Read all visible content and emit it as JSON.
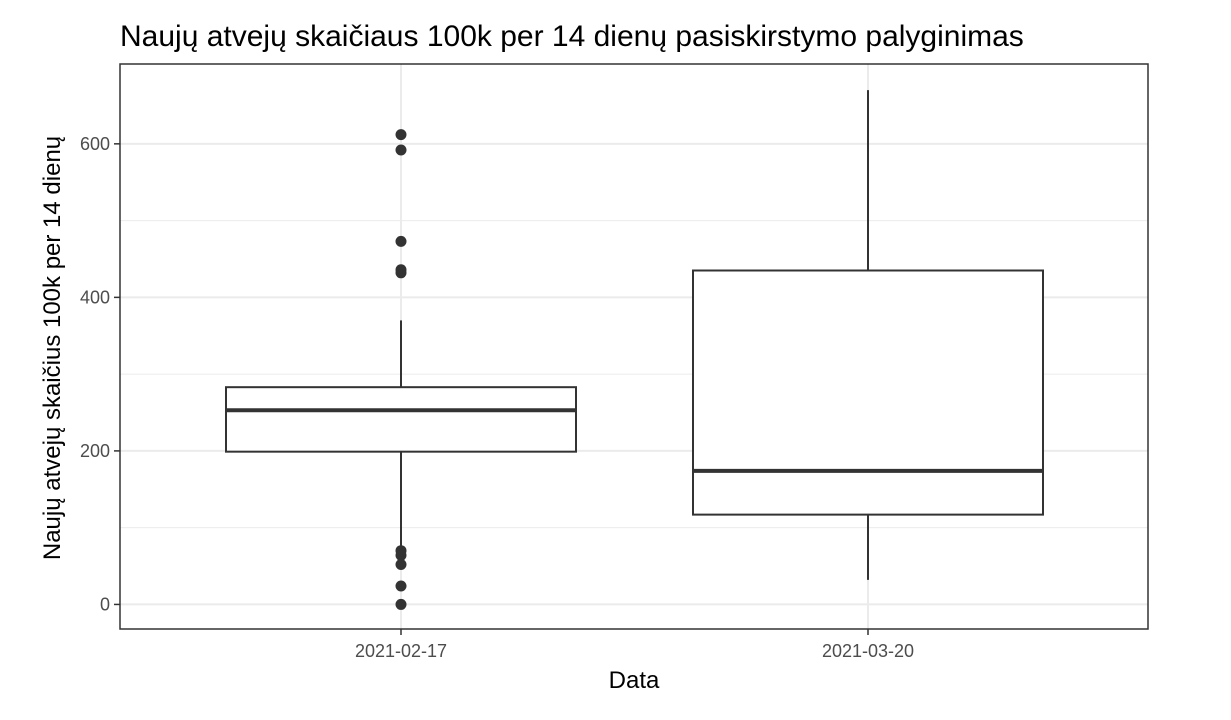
{
  "chart_data": {
    "type": "boxplot",
    "title": "Naujų atvejų skaičiaus 100k per 14 dienų pasiskirstymo palyginimas",
    "xlabel": "Data",
    "ylabel": "Naujų atvejų skaičius 100k per 14 dienų",
    "ylim": [
      -32,
      704
    ],
    "yticks": [
      0,
      200,
      400,
      600
    ],
    "ytick_labels": [
      "0",
      "200",
      "400",
      "600"
    ],
    "grid": true,
    "categories": [
      "2021-02-17",
      "2021-03-20"
    ],
    "boxes": [
      {
        "category": "2021-02-17",
        "whisker_low": 70,
        "q1": 199,
        "median": 253,
        "q3": 283,
        "whisker_high": 370,
        "outliers": [
          612,
          592,
          473,
          436,
          432,
          70,
          64,
          52,
          24,
          0
        ]
      },
      {
        "category": "2021-03-20",
        "whisker_low": 32,
        "q1": 117,
        "median": 174,
        "q3": 435,
        "whisker_high": 670,
        "outliers": []
      }
    ],
    "colors": {
      "box_line": "#333333",
      "gridline": "#ebebeb",
      "panel_border": "#333333",
      "tick_text": "#4d4d4d"
    }
  }
}
